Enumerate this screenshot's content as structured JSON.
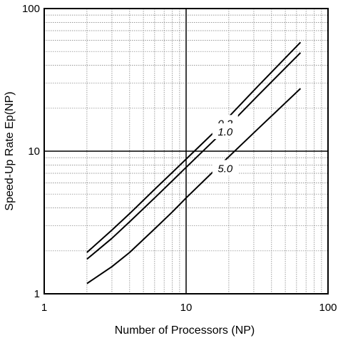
{
  "chart_data": {
    "type": "line",
    "title": "",
    "xlabel": "Number of Processors (NP)",
    "ylabel": "Speed-Up Rate Ep(NP)",
    "xscale": "log",
    "yscale": "log",
    "xlim": [
      1,
      100
    ],
    "ylim": [
      1,
      100
    ],
    "x_ticks": [
      "1",
      "10",
      "100"
    ],
    "y_ticks": [
      "1",
      "10",
      "100"
    ],
    "grid": true,
    "series": [
      {
        "name": "0.2",
        "x": [
          2,
          3,
          4,
          6,
          8,
          10,
          16,
          32,
          64
        ],
        "y": [
          1.95,
          2.8,
          3.65,
          5.4,
          7.1,
          8.8,
          13.8,
          28.5,
          58
        ]
      },
      {
        "name": "1.0",
        "x": [
          2,
          3,
          4,
          6,
          8,
          10,
          16,
          32,
          64
        ],
        "y": [
          1.75,
          2.45,
          3.2,
          4.7,
          6.2,
          7.7,
          12.1,
          24.5,
          49
        ]
      },
      {
        "name": "5.0",
        "x": [
          2,
          3,
          4,
          6,
          8,
          10,
          16,
          32,
          64
        ],
        "y": [
          1.18,
          1.55,
          1.95,
          2.85,
          3.75,
          4.7,
          7.4,
          14.3,
          27.5
        ]
      }
    ]
  }
}
